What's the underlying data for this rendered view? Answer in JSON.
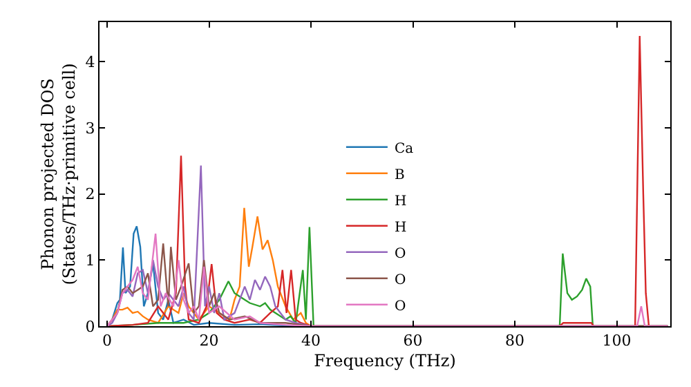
{
  "chart_data": {
    "type": "line",
    "xlabel": "Frequency (THz)",
    "ylabel": "Phonon projected DOS\n(States/THz·primitive cell)",
    "xlim": [
      -1.5,
      110.5
    ],
    "ylim": [
      0,
      4.6
    ],
    "xticks": [
      0,
      20,
      40,
      60,
      80,
      100
    ],
    "yticks": [
      0,
      1,
      2,
      3,
      4
    ],
    "legend": "center",
    "marker": "none",
    "line_style": "solid",
    "series": [
      {
        "name": "Ca",
        "color": "#1f77b4",
        "x": [
          0,
          1,
          2,
          2.5,
          3.1,
          3.6,
          4.5,
          5.2,
          5.8,
          6.5,
          7.2,
          8,
          9,
          10,
          11,
          12,
          13,
          15,
          17,
          20,
          25,
          30,
          35,
          40,
          110
        ],
        "values": [
          0,
          0.1,
          0.35,
          0.4,
          1.19,
          0.5,
          0.6,
          1.4,
          1.51,
          1.2,
          0.3,
          0.5,
          0.95,
          0.2,
          0.1,
          0.4,
          0.05,
          0.1,
          0.02,
          0.05,
          0.02,
          0.03,
          0.01,
          0,
          0
        ]
      },
      {
        "name": "B",
        "color": "#ff7f0e",
        "x": [
          0,
          1,
          2,
          3,
          4,
          5,
          6,
          7,
          8,
          10,
          12,
          14,
          15,
          16,
          18,
          20,
          22,
          24,
          25,
          26,
          26.9,
          27.8,
          28.5,
          29.5,
          30.5,
          31.5,
          32.5,
          33.5,
          35,
          36.5,
          38,
          39,
          40,
          110
        ],
        "values": [
          0,
          0.1,
          0.25,
          0.25,
          0.28,
          0.2,
          0.22,
          0.15,
          0.1,
          0.05,
          0.3,
          0.2,
          0.5,
          0.3,
          0.1,
          0.3,
          0.2,
          0.1,
          0.4,
          0.6,
          1.79,
          0.9,
          1.2,
          1.66,
          1.16,
          1.3,
          1.0,
          0.6,
          0.3,
          0.1,
          0.2,
          0.05,
          0,
          0
        ]
      },
      {
        "name": "H",
        "color": "#2ca02c",
        "x": [
          0,
          5,
          10,
          15,
          18,
          20,
          21,
          22,
          23.8,
          25,
          26,
          27,
          28,
          30,
          31,
          32,
          33,
          35,
          36,
          37,
          38.4,
          39,
          39.7,
          40.5,
          88.8,
          89.4,
          90.3,
          91.2,
          92.2,
          93.2,
          94,
          94.8,
          95.3,
          110
        ],
        "values": [
          0,
          0.02,
          0.05,
          0.05,
          0.1,
          0.2,
          0.3,
          0.4,
          0.68,
          0.5,
          0.45,
          0.4,
          0.35,
          0.3,
          0.35,
          0.25,
          0.2,
          0.1,
          0.15,
          0.05,
          0.85,
          0.1,
          1.5,
          0,
          0,
          1.1,
          0.5,
          0.4,
          0.45,
          0.55,
          0.72,
          0.6,
          0,
          0
        ]
      },
      {
        "name": "H",
        "color": "#d62728",
        "x": [
          0,
          5,
          8,
          10,
          12,
          13.5,
          14.5,
          15.3,
          16,
          18,
          19.5,
          20.5,
          21.5,
          23,
          25,
          28,
          30,
          32,
          33.5,
          34.4,
          35.2,
          36.1,
          37,
          38,
          40,
          88.8,
          89.5,
          95,
          95.5,
          103.6,
          104.5,
          105.2,
          105.7,
          106.3,
          110
        ],
        "values": [
          0,
          0.02,
          0.05,
          0.3,
          0.1,
          0.5,
          2.58,
          0.6,
          0.1,
          0.05,
          0.3,
          0.94,
          0.2,
          0.1,
          0.05,
          0.1,
          0.05,
          0.2,
          0.3,
          0.85,
          0.2,
          0.85,
          0.1,
          0.05,
          0,
          0,
          0.05,
          0.05,
          0,
          0,
          4.39,
          2.0,
          0.5,
          0,
          0
        ]
      },
      {
        "name": "O",
        "color": "#9467bd",
        "x": [
          0,
          1,
          2,
          3,
          4,
          5,
          6,
          7,
          8,
          9,
          10,
          11,
          12,
          14,
          15,
          16,
          17,
          18.4,
          19.2,
          20,
          21,
          22,
          23,
          25,
          27,
          28,
          29,
          30,
          31,
          32,
          33,
          35,
          37,
          40,
          110
        ],
        "values": [
          0,
          0.05,
          0.2,
          0.5,
          0.55,
          0.45,
          0.8,
          0.85,
          0.5,
          1.0,
          0.6,
          0.4,
          0.5,
          0.3,
          0.6,
          0.2,
          0.1,
          2.43,
          0.3,
          0.6,
          0.2,
          0.5,
          0.1,
          0.2,
          0.6,
          0.4,
          0.7,
          0.55,
          0.75,
          0.6,
          0.3,
          0.1,
          0.05,
          0,
          0
        ]
      },
      {
        "name": "O",
        "color": "#8c564b",
        "x": [
          0,
          2,
          3,
          4,
          5,
          6,
          7,
          8,
          9,
          10,
          11,
          12,
          12.5,
          13.5,
          14.5,
          16,
          17,
          18,
          19,
          20,
          21,
          22,
          24,
          27,
          30,
          35,
          40,
          110
        ],
        "values": [
          0,
          0.2,
          0.55,
          0.6,
          0.5,
          0.55,
          0.6,
          0.8,
          0.3,
          0.4,
          1.25,
          0.3,
          1.2,
          0.4,
          0.6,
          0.95,
          0.2,
          0.3,
          1.0,
          0.3,
          0.5,
          0.2,
          0.1,
          0.15,
          0.05,
          0.05,
          0,
          0
        ]
      },
      {
        "name": "O",
        "color": "#e377c2",
        "x": [
          0,
          2,
          3,
          4,
          5,
          6,
          7,
          8,
          9.5,
          10.5,
          11.5,
          13,
          14,
          15,
          16,
          17,
          18,
          19,
          20,
          22,
          25,
          28,
          30,
          35,
          40,
          104,
          104.8,
          105.5,
          110
        ],
        "values": [
          0,
          0.2,
          0.5,
          0.6,
          0.7,
          0.9,
          0.5,
          0.4,
          1.4,
          0.3,
          0.5,
          0.3,
          1.0,
          0.4,
          0.2,
          0.3,
          0.1,
          0.9,
          0.2,
          0.3,
          0.1,
          0.15,
          0.05,
          0.02,
          0,
          0,
          0.3,
          0,
          0
        ]
      }
    ]
  }
}
